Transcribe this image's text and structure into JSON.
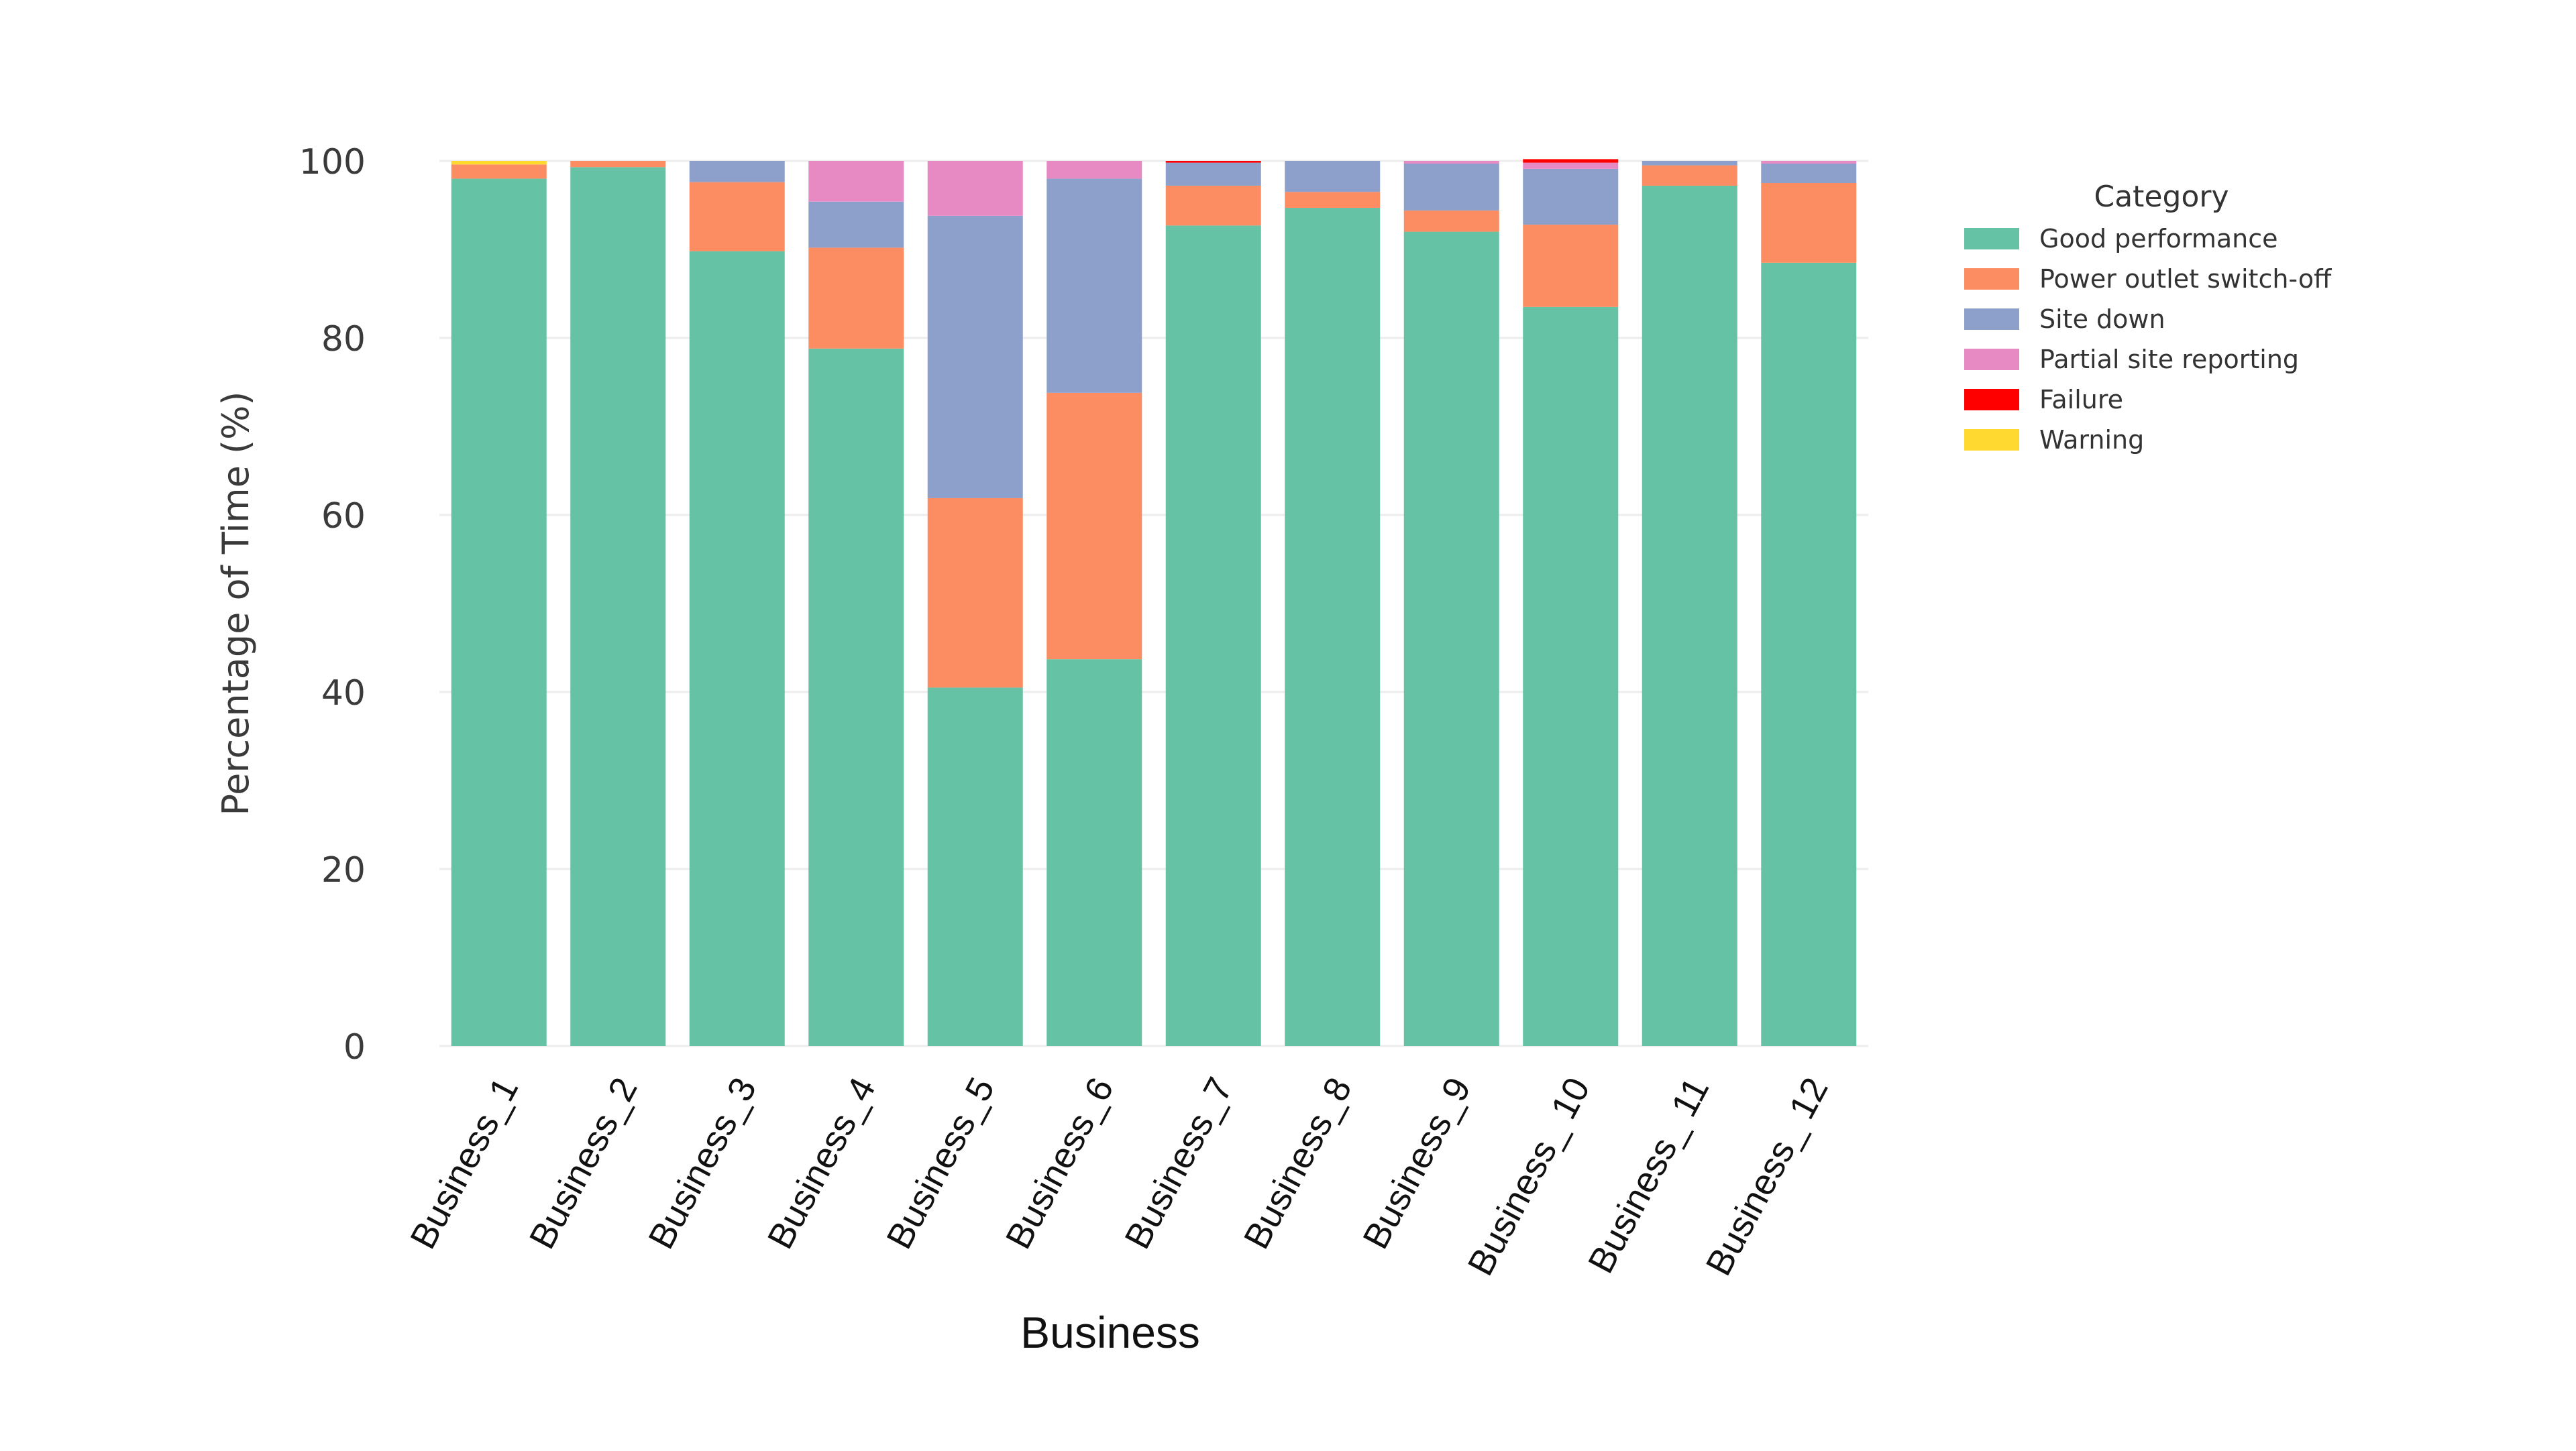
{
  "chart_data": {
    "type": "bar",
    "stacked": true,
    "xlabel": "Business",
    "ylabel": "Percentage of Time (%)",
    "ylim": [
      0,
      100
    ],
    "yticks": [
      0,
      20,
      40,
      60,
      80,
      100
    ],
    "grid": "horizontal",
    "legend": {
      "title": "Category",
      "placement": "right"
    },
    "categories": [
      "Business_1",
      "Business_2",
      "Business_3",
      "Business_4",
      "Business_5",
      "Business_6",
      "Business_7",
      "Business_8",
      "Business_9",
      "Business_ 10",
      "Business_ 11",
      "Business_ 12"
    ],
    "series": [
      {
        "name": "Good performance",
        "color": "#66c2a5",
        "values": [
          98,
          99.3,
          89.8,
          78.8,
          40.5,
          43.7,
          92.7,
          94.7,
          92,
          83.5,
          97.2,
          88.5
        ]
      },
      {
        "name": "Power outlet switch-off",
        "color": "#fc8d62",
        "values": [
          1.6,
          0.7,
          7.8,
          11.4,
          21.4,
          30.1,
          4.5,
          1.8,
          2.4,
          9.3,
          2.3,
          9
        ]
      },
      {
        "name": "Site down",
        "color": "#8da0cb",
        "values": [
          0,
          0,
          2.4,
          5.2,
          31.9,
          24.2,
          2.6,
          3.5,
          5.3,
          6.3,
          0.5,
          2.2
        ]
      },
      {
        "name": "Partial site reporting",
        "color": "#e78ac3",
        "values": [
          0,
          0,
          0,
          4.6,
          6.2,
          2,
          0,
          0,
          0.3,
          0.7,
          0,
          0.3
        ]
      },
      {
        "name": "Failure",
        "color": "#ff0000",
        "values": [
          0,
          0,
          0,
          0,
          0,
          0,
          0.2,
          0,
          0,
          0.4,
          0,
          0
        ]
      },
      {
        "name": "Warning",
        "color": "#ffd92f",
        "values": [
          0.4,
          0,
          0,
          0,
          0,
          0,
          0,
          0,
          0,
          0,
          0,
          0
        ]
      }
    ]
  }
}
